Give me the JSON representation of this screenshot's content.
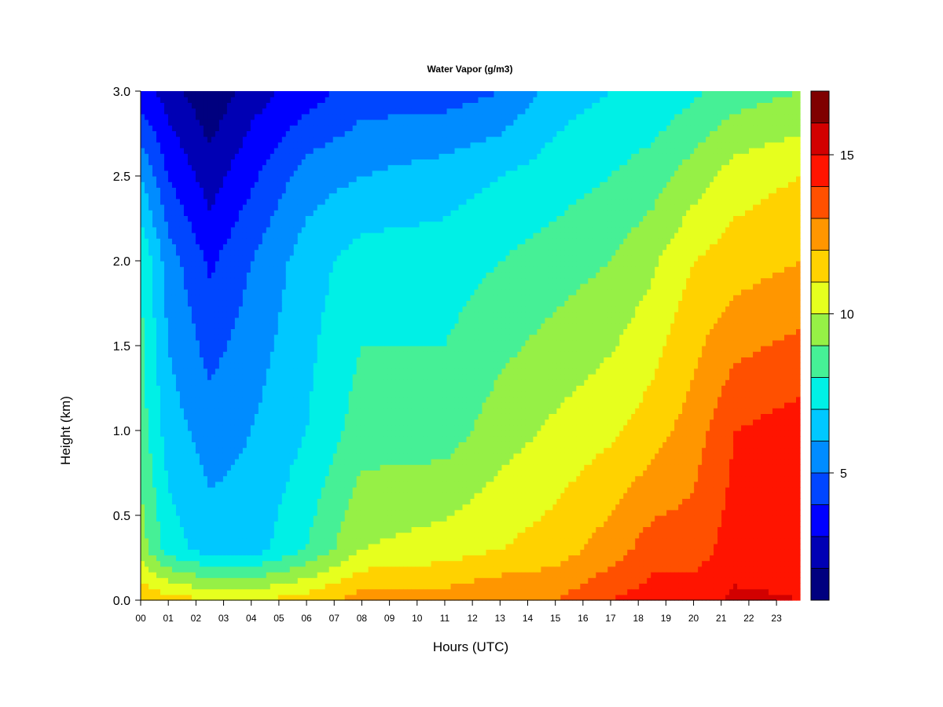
{
  "chart_data": {
    "type": "heatmap",
    "title": "Water Vapor (g/m3)",
    "xlabel": "Hours (UTC)",
    "ylabel": "Height (km)",
    "x_ticks": [
      "00",
      "01",
      "02",
      "03",
      "04",
      "05",
      "06",
      "07",
      "08",
      "09",
      "10",
      "11",
      "12",
      "13",
      "14",
      "15",
      "16",
      "17",
      "18",
      "19",
      "20",
      "21",
      "22",
      "23"
    ],
    "y_ticks": [
      "0.0",
      "0.5",
      "1.0",
      "1.5",
      "2.0",
      "2.5",
      "3.0"
    ],
    "xlim": [
      0,
      23.85
    ],
    "ylim": [
      0,
      3.0
    ],
    "colorbar": {
      "levels": [
        1,
        2,
        3,
        4,
        5,
        6,
        7,
        8,
        9,
        10,
        11,
        12,
        13,
        14,
        15,
        16,
        17
      ],
      "tick_values": [
        5,
        10,
        15
      ],
      "tick_labels": [
        "5",
        "10",
        "15"
      ],
      "colors": [
        "#00007f",
        "#0000b4",
        "#0000ff",
        "#0046ff",
        "#008cff",
        "#00c8ff",
        "#00f0e6",
        "#46f096",
        "#96f046",
        "#e6ff1e",
        "#ffd200",
        "#ff9600",
        "#ff5000",
        "#ff1400",
        "#d20000",
        "#7f0000"
      ]
    },
    "field_profiles": [
      {
        "hour": 0.0,
        "values_by_height": [
          [
            0.0,
            12.0
          ],
          [
            0.3,
            9.5
          ],
          [
            1.0,
            8.5
          ],
          [
            2.0,
            8.0
          ],
          [
            2.5,
            6.0
          ],
          [
            3.0,
            3.5
          ]
        ]
      },
      {
        "hour": 1.0,
        "values_by_height": [
          [
            0.0,
            11.5
          ],
          [
            0.3,
            7.5
          ],
          [
            1.0,
            6.5
          ],
          [
            2.0,
            5.5
          ],
          [
            2.5,
            4.0
          ],
          [
            3.0,
            2.5
          ]
        ]
      },
      {
        "hour": 2.5,
        "values_by_height": [
          [
            0.0,
            11.0
          ],
          [
            0.3,
            6.5
          ],
          [
            1.0,
            5.5
          ],
          [
            2.0,
            3.8
          ],
          [
            2.5,
            2.5
          ],
          [
            3.0,
            1.2
          ]
        ]
      },
      {
        "hour": 4.0,
        "values_by_height": [
          [
            0.0,
            11.0
          ],
          [
            0.3,
            6.5
          ],
          [
            1.0,
            6.0
          ],
          [
            2.0,
            5.0
          ],
          [
            2.5,
            3.8
          ],
          [
            3.0,
            2.5
          ]
        ]
      },
      {
        "hour": 6.0,
        "values_by_height": [
          [
            0.0,
            11.5
          ],
          [
            0.3,
            8.0
          ],
          [
            1.0,
            7.0
          ],
          [
            2.0,
            6.5
          ],
          [
            2.5,
            5.5
          ],
          [
            3.0,
            3.5
          ]
        ]
      },
      {
        "hour": 8.0,
        "values_by_height": [
          [
            0.0,
            12.5
          ],
          [
            0.3,
            10.0
          ],
          [
            1.0,
            8.5
          ],
          [
            2.0,
            7.5
          ],
          [
            2.5,
            6.0
          ],
          [
            3.0,
            4.5
          ]
        ]
      },
      {
        "hour": 11.0,
        "values_by_height": [
          [
            0.0,
            12.5
          ],
          [
            0.3,
            10.5
          ],
          [
            1.0,
            8.5
          ],
          [
            2.0,
            7.5
          ],
          [
            2.5,
            6.5
          ],
          [
            3.0,
            4.5
          ]
        ]
      },
      {
        "hour": 13.0,
        "values_by_height": [
          [
            0.0,
            13.0
          ],
          [
            0.3,
            11.0
          ],
          [
            1.0,
            9.5
          ],
          [
            2.0,
            8.0
          ],
          [
            2.5,
            7.0
          ],
          [
            3.0,
            5.0
          ]
        ]
      },
      {
        "hour": 15.0,
        "values_by_height": [
          [
            0.0,
            13.0
          ],
          [
            0.3,
            11.5
          ],
          [
            1.0,
            10.2
          ],
          [
            2.0,
            8.5
          ],
          [
            2.5,
            7.5
          ],
          [
            3.0,
            6.5
          ]
        ]
      },
      {
        "hour": 17.0,
        "values_by_height": [
          [
            0.0,
            14.0
          ],
          [
            0.3,
            12.5
          ],
          [
            1.0,
            10.8
          ],
          [
            2.0,
            9.0
          ],
          [
            2.5,
            8.0
          ],
          [
            3.0,
            7.0
          ]
        ]
      },
      {
        "hour": 18.5,
        "values_by_height": [
          [
            0.0,
            14.5
          ],
          [
            0.3,
            13.5
          ],
          [
            1.0,
            11.5
          ],
          [
            2.0,
            9.8
          ],
          [
            2.5,
            8.5
          ],
          [
            3.0,
            7.2
          ]
        ]
      },
      {
        "hour": 20.0,
        "values_by_height": [
          [
            0.0,
            14.5
          ],
          [
            0.3,
            13.5
          ],
          [
            1.0,
            12.5
          ],
          [
            2.0,
            11.0
          ],
          [
            2.5,
            9.5
          ],
          [
            3.0,
            7.8
          ]
        ]
      },
      {
        "hour": 21.5,
        "values_by_height": [
          [
            0.0,
            15.2
          ],
          [
            0.3,
            14.5
          ],
          [
            1.0,
            14.0
          ],
          [
            2.0,
            11.5
          ],
          [
            2.5,
            10.5
          ],
          [
            3.0,
            8.5
          ]
        ]
      },
      {
        "hour": 23.85,
        "values_by_height": [
          [
            0.0,
            15.0
          ],
          [
            0.3,
            14.5
          ],
          [
            1.0,
            14.5
          ],
          [
            2.0,
            12.0
          ],
          [
            2.5,
            11.0
          ],
          [
            3.0,
            9.0
          ]
        ]
      }
    ]
  }
}
